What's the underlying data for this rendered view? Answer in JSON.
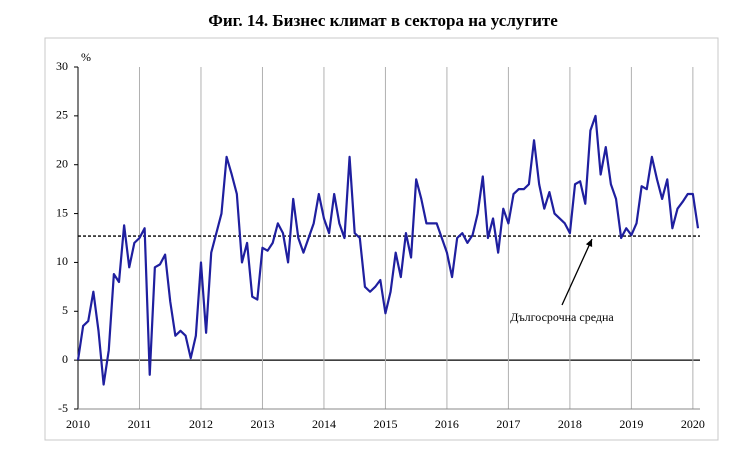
{
  "chart_data": {
    "type": "line",
    "title": "Фиг. 14. Бизнес климат в сектора на услугите",
    "y_label": "%",
    "categories": [
      "2010",
      null,
      null,
      null,
      null,
      null,
      null,
      null,
      null,
      null,
      null,
      null,
      "2011",
      null,
      null,
      null,
      null,
      null,
      null,
      null,
      null,
      null,
      null,
      null,
      "2012",
      null,
      null,
      null,
      null,
      null,
      null,
      null,
      null,
      null,
      null,
      null,
      "2013",
      null,
      null,
      null,
      null,
      null,
      null,
      null,
      null,
      null,
      null,
      null,
      "2014",
      null,
      null,
      null,
      null,
      null,
      null,
      null,
      null,
      null,
      null,
      null,
      "2015",
      null,
      null,
      null,
      null,
      null,
      null,
      null,
      null,
      null,
      null,
      null,
      "2016",
      null,
      null,
      null,
      null,
      null,
      null,
      null,
      null,
      null,
      null,
      null,
      "2017",
      null,
      null,
      null,
      null,
      null,
      null,
      null,
      null,
      null,
      null,
      null,
      "2018",
      null,
      null,
      null,
      null,
      null,
      null,
      null,
      null,
      null,
      null,
      null,
      "2019",
      null,
      null,
      null,
      null,
      null,
      null,
      null,
      null,
      null,
      null,
      null,
      "2020",
      null
    ],
    "series": [
      {
        "color": "#1f1f9f",
        "values": [
          0,
          3.5,
          4,
          7,
          3,
          -2.5,
          1,
          8.8,
          8,
          13.8,
          9.5,
          12,
          12.5,
          13.5,
          -1.5,
          9.5,
          9.8,
          10.8,
          6,
          2.5,
          3,
          2.5,
          0.2,
          2.5,
          10,
          2.8,
          11,
          13,
          15,
          20.8,
          19,
          17,
          10,
          12,
          6.5,
          6.2,
          11.5,
          11.2,
          12,
          14,
          13,
          10,
          16.5,
          12.5,
          11,
          12.5,
          14,
          17,
          14.5,
          13,
          17,
          14,
          12.5,
          20.8,
          13,
          12.5,
          7.5,
          7,
          7.5,
          8.2,
          4.8,
          7,
          11,
          8.5,
          13,
          10.5,
          18.5,
          16.5,
          14,
          14,
          14,
          12.5,
          11,
          8.5,
          12.5,
          13,
          12,
          12.8,
          15,
          18.8,
          12.5,
          14.5,
          11,
          15.5,
          14,
          17,
          17.5,
          17.5,
          18,
          22.5,
          18,
          15.5,
          17.2,
          15,
          14.5,
          14,
          13,
          18,
          18.3,
          16,
          23.5,
          25,
          19,
          21.8,
          18,
          16.5,
          12.5,
          13.5,
          12.8,
          14,
          17.8,
          17.5,
          20.8,
          18.5,
          16.5,
          18.5,
          13.5,
          15.5,
          16.2,
          17,
          17,
          13.5
        ]
      }
    ],
    "reference_line": {
      "value": 12.7,
      "label": "Дългосрочна средна"
    },
    "ylim": [
      -5,
      30
    ],
    "yticks": [
      -5,
      0,
      5,
      10,
      15,
      20,
      25,
      30
    ],
    "grid": true
  }
}
